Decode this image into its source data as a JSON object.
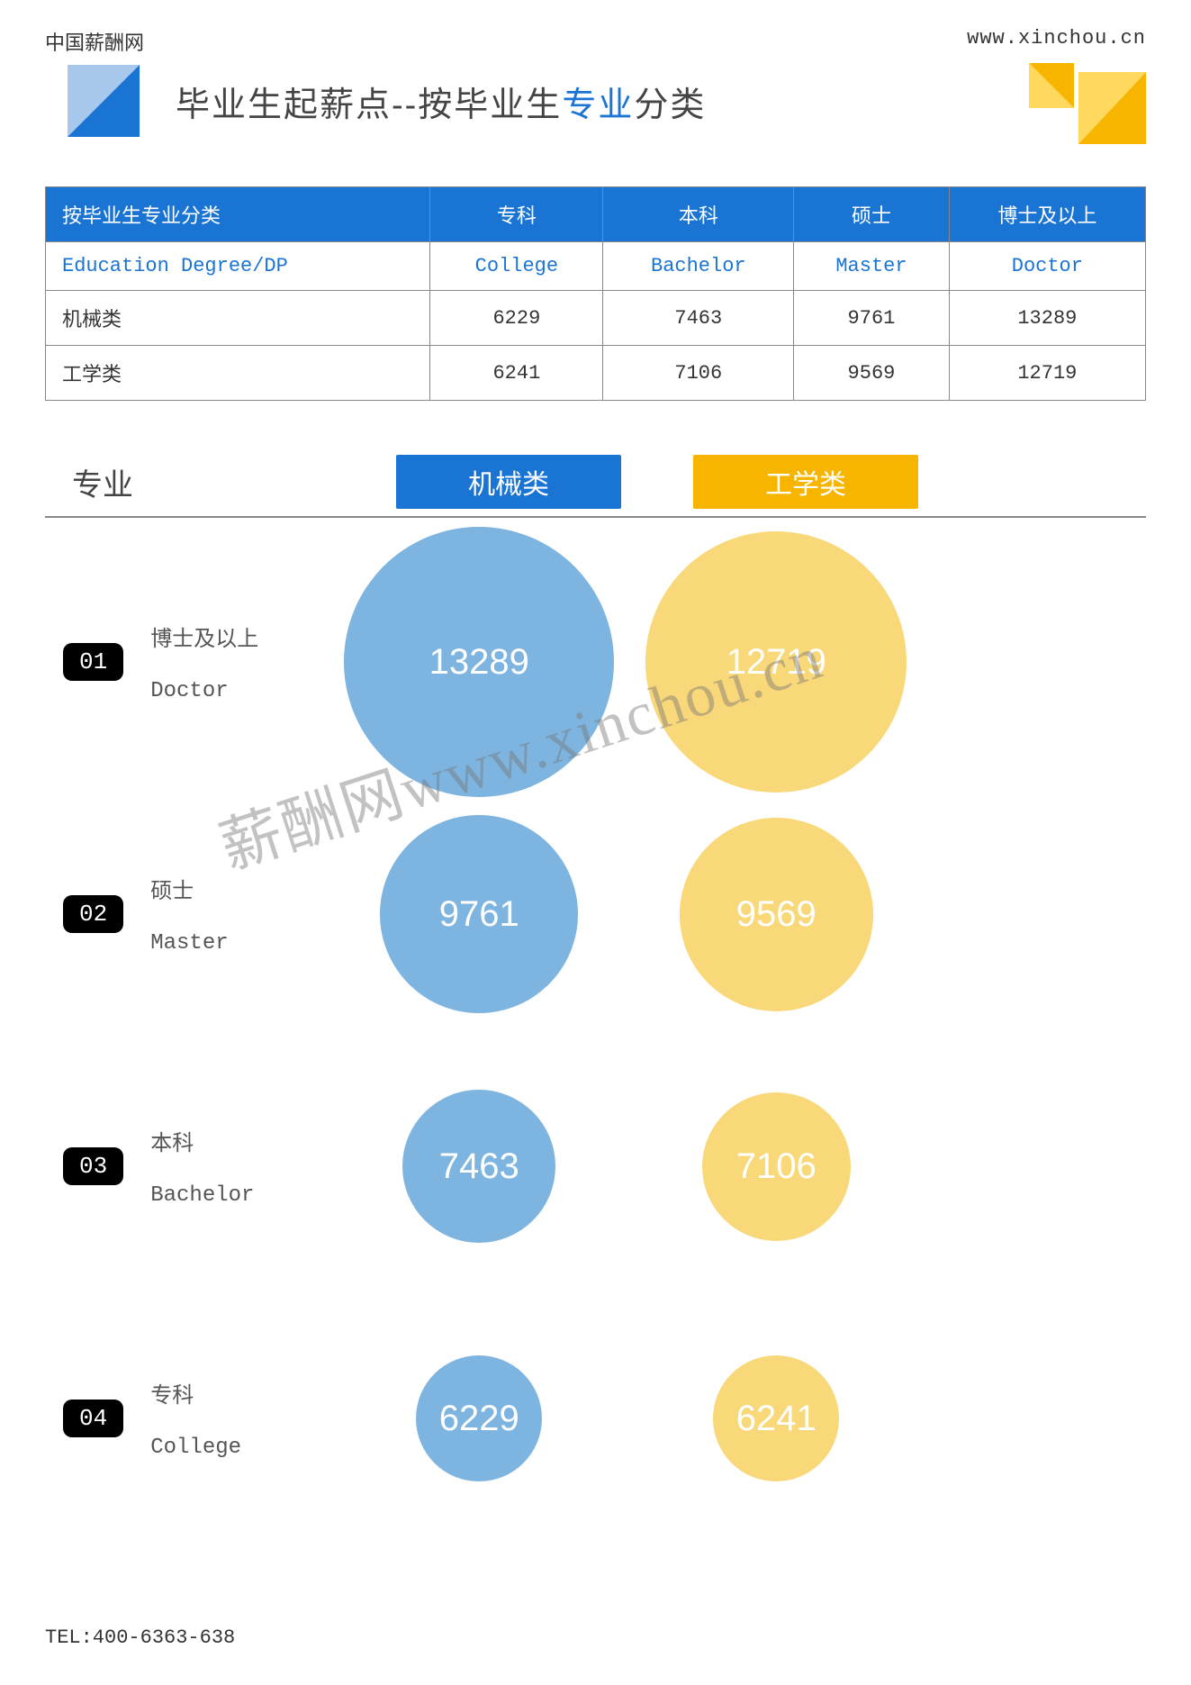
{
  "site_name_cn": "中国薪酬网",
  "site_url": "www.xinchou.cn",
  "title_prefix": "毕业生起薪点--按毕业生",
  "title_highlight": "专业",
  "title_suffix": "分类",
  "logo_colors": {
    "dark": "#1a74d4",
    "light": "#a7c8ec"
  },
  "deco_colors": {
    "yellow": "#f7b500",
    "yellow_light": "#ffd95e"
  },
  "table": {
    "header": [
      "按毕业生专业分类",
      "专科",
      "本科",
      "硕士",
      "博士及以上"
    ],
    "en_row": [
      "Education Degree/DP",
      "College",
      "Bachelor",
      "Master",
      "Doctor"
    ],
    "rows": [
      {
        "label": "机械类",
        "values": [
          6229,
          7463,
          9761,
          13289
        ]
      },
      {
        "label": "工学类",
        "values": [
          6241,
          7106,
          9569,
          12719
        ]
      }
    ]
  },
  "section_label": "专业",
  "series": [
    {
      "name": "机械类",
      "color": "#1a74d4",
      "bubble_color": "#7db4e0"
    },
    {
      "name": "工学类",
      "color": "#f7b500",
      "bubble_color": "#f9d879"
    }
  ],
  "bubble_rows": [
    {
      "badge": "01",
      "cn": "博士及以上",
      "en": "Doctor",
      "v1": 13289,
      "v2": 12719,
      "d1": 300,
      "d2": 290
    },
    {
      "badge": "02",
      "cn": "硕士",
      "en": "Master",
      "v1": 9761,
      "v2": 9569,
      "d1": 220,
      "d2": 215
    },
    {
      "badge": "03",
      "cn": "本科",
      "en": "Bachelor",
      "v1": 7463,
      "v2": 7106,
      "d1": 170,
      "d2": 165
    },
    {
      "badge": "04",
      "cn": "专科",
      "en": "College",
      "v1": 6229,
      "v2": 6241,
      "d1": 140,
      "d2": 140
    }
  ],
  "watermark_text": "薪酬网www.xinchou.cn",
  "footer_tel": "TEL:400-6363-638"
}
